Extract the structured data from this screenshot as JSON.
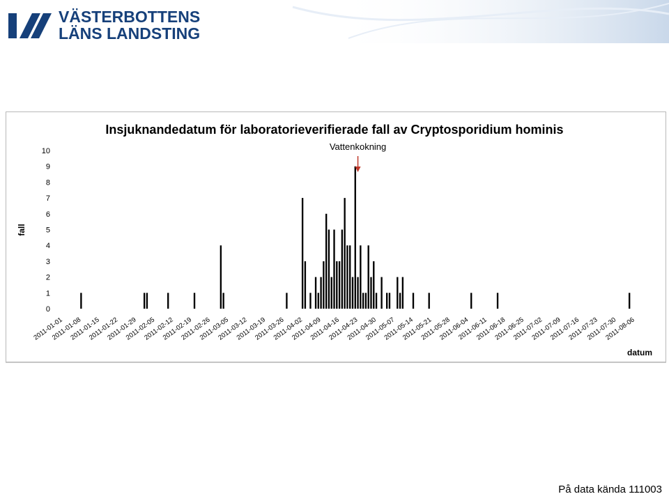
{
  "header": {
    "brand_line1": "VÄSTERBOTTENS",
    "brand_line2": "LÄNS LANDSTING",
    "brand_color": "#16407a"
  },
  "footer": {
    "note": "På data kända 111003"
  },
  "chart_data": {
    "type": "bar",
    "title": "Insjuknandedatum för laboratorieverifierade fall av Cryptosporidium hominis",
    "ylabel": "fall",
    "xlabel": "datum",
    "ylim": [
      0,
      10
    ],
    "yticks": [
      0,
      1,
      2,
      3,
      4,
      5,
      6,
      7,
      8,
      9,
      10
    ],
    "grid": false,
    "bar_color": "#000000",
    "x_start": "2011-01-01",
    "x_end": "2011-08-10",
    "tick_labels": [
      "2011-01-01",
      "2011-01-08",
      "2011-01-15",
      "2011-01-22",
      "2011-01-29",
      "2011-02-05",
      "2011-02-12",
      "2011-02-19",
      "2011-02-26",
      "2011-03-05",
      "2011-03-12",
      "2011-03-19",
      "2011-03-26",
      "2011-04-02",
      "2011-04-09",
      "2011-04-16",
      "2011-04-23",
      "2011-04-30",
      "2011-05-07",
      "2011-05-14",
      "2011-05-21",
      "2011-05-28",
      "2011-06-04",
      "2011-06-11",
      "2011-06-18",
      "2011-06-25",
      "2011-07-02",
      "2011-07-09",
      "2011-07-16",
      "2011-07-23",
      "2011-07-30",
      "2011-08-06"
    ],
    "annotation": {
      "text": "Vattenkokning",
      "date": "2011-04-24",
      "color": "#c0392b"
    },
    "points": [
      {
        "date": "2011-01-08",
        "value": 1
      },
      {
        "date": "2011-02-01",
        "value": 1
      },
      {
        "date": "2011-02-02",
        "value": 1
      },
      {
        "date": "2011-02-10",
        "value": 1
      },
      {
        "date": "2011-02-20",
        "value": 1
      },
      {
        "date": "2011-03-02",
        "value": 4
      },
      {
        "date": "2011-03-03",
        "value": 1
      },
      {
        "date": "2011-03-27",
        "value": 1
      },
      {
        "date": "2011-04-02",
        "value": 7
      },
      {
        "date": "2011-04-03",
        "value": 3
      },
      {
        "date": "2011-04-05",
        "value": 1
      },
      {
        "date": "2011-04-07",
        "value": 2
      },
      {
        "date": "2011-04-08",
        "value": 1
      },
      {
        "date": "2011-04-09",
        "value": 2
      },
      {
        "date": "2011-04-10",
        "value": 3
      },
      {
        "date": "2011-04-11",
        "value": 6
      },
      {
        "date": "2011-04-12",
        "value": 5
      },
      {
        "date": "2011-04-13",
        "value": 2
      },
      {
        "date": "2011-04-14",
        "value": 5
      },
      {
        "date": "2011-04-15",
        "value": 3
      },
      {
        "date": "2011-04-16",
        "value": 3
      },
      {
        "date": "2011-04-17",
        "value": 5
      },
      {
        "date": "2011-04-18",
        "value": 7
      },
      {
        "date": "2011-04-19",
        "value": 4
      },
      {
        "date": "2011-04-20",
        "value": 4
      },
      {
        "date": "2011-04-21",
        "value": 2
      },
      {
        "date": "2011-04-22",
        "value": 9
      },
      {
        "date": "2011-04-23",
        "value": 2
      },
      {
        "date": "2011-04-24",
        "value": 4
      },
      {
        "date": "2011-04-25",
        "value": 1
      },
      {
        "date": "2011-04-26",
        "value": 1
      },
      {
        "date": "2011-04-27",
        "value": 4
      },
      {
        "date": "2011-04-28",
        "value": 2
      },
      {
        "date": "2011-04-29",
        "value": 3
      },
      {
        "date": "2011-04-30",
        "value": 1
      },
      {
        "date": "2011-05-02",
        "value": 2
      },
      {
        "date": "2011-05-04",
        "value": 1
      },
      {
        "date": "2011-05-05",
        "value": 1
      },
      {
        "date": "2011-05-08",
        "value": 2
      },
      {
        "date": "2011-05-09",
        "value": 1
      },
      {
        "date": "2011-05-10",
        "value": 2
      },
      {
        "date": "2011-05-14",
        "value": 1
      },
      {
        "date": "2011-05-20",
        "value": 1
      },
      {
        "date": "2011-06-05",
        "value": 1
      },
      {
        "date": "2011-06-15",
        "value": 1
      },
      {
        "date": "2011-08-04",
        "value": 1
      }
    ]
  }
}
